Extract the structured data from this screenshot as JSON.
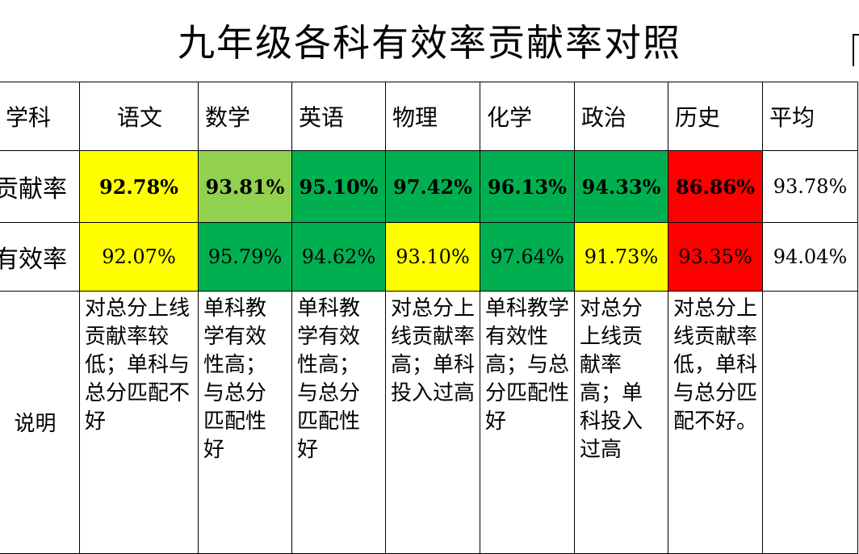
{
  "title": "九年级各科有效率贡献率对照",
  "colors": {
    "yellow": "#ffff00",
    "light_green": "#92d050",
    "green": "#00b050",
    "red": "#ff0000"
  },
  "table": {
    "header": [
      "学科",
      "语文",
      "数学",
      "英语",
      "物理",
      "化学",
      "政治",
      "历史",
      "平均"
    ],
    "rows": [
      {
        "label": "贡献率",
        "values": [
          "92.78%",
          "93.81%",
          "95.10%",
          "97.42%",
          "96.13%",
          "94.33%",
          "86.86%",
          "93.78%"
        ]
      },
      {
        "label": "有效率",
        "values": [
          "92.07%",
          "95.79%",
          "94.62%",
          "93.10%",
          "97.64%",
          "91.73%",
          "93.35%",
          "94.04%"
        ]
      },
      {
        "label": "说明",
        "values": [
          "对总分上线贡献率较低；单科与总分匹配不好",
          "单科教学有效性高；与总分匹配性好",
          "单科教学有效性高；与总分匹配性好",
          "对总分上线贡献率高；单科投入过高",
          "单科教学有效性高；与总分匹配性好",
          "对总分上线贡献率高；单科投入过高",
          "对总分上线贡献率低，单科与总分匹配不好。",
          ""
        ]
      }
    ]
  }
}
